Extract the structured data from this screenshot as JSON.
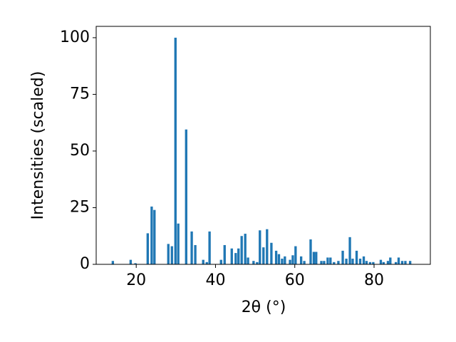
{
  "chart_data": {
    "type": "bar",
    "x_label": "2θ (°)",
    "y_label": "Intensities (scaled)",
    "x": [
      14.1,
      18.6,
      19.8,
      22.9,
      23.9,
      24.6,
      28.1,
      29.0,
      29.9,
      30.6,
      32.6,
      34.0,
      34.9,
      36.9,
      37.8,
      38.5,
      41.4,
      42.3,
      44.1,
      45.1,
      45.8,
      46.6,
      47.5,
      48.2,
      49.6,
      50.5,
      51.2,
      52.1,
      53.0,
      54.1,
      55.3,
      56.0,
      56.8,
      57.5,
      58.8,
      59.5,
      60.2,
      61.6,
      62.4,
      64.0,
      64.8,
      65.4,
      66.7,
      67.4,
      68.3,
      69.0,
      69.9,
      71.0,
      72.1,
      73.0,
      73.9,
      74.6,
      75.6,
      76.5,
      77.4,
      78.1,
      79.0,
      79.8,
      81.7,
      82.4,
      83.5,
      84.1,
      85.5,
      86.2,
      87.1,
      87.9,
      89.1
    ],
    "values": [
      1.5,
      2,
      0.5,
      13.7,
      25.5,
      24,
      9,
      8,
      100,
      18,
      59.5,
      14.5,
      8.5,
      2,
      1,
      14.5,
      2,
      8.5,
      7,
      5,
      7,
      12.5,
      13.5,
      3,
      1.5,
      1,
      15,
      7.5,
      15.5,
      9.5,
      6,
      4.5,
      2.5,
      3.5,
      2,
      4,
      8,
      3.5,
      1.5,
      11,
      5.5,
      5.5,
      1.5,
      1.5,
      3,
      3,
      1,
      1.5,
      6,
      2.5,
      12,
      2.5,
      6,
      2.5,
      3.5,
      1.5,
      1,
      1,
      2,
      1,
      1.5,
      3,
      1,
      3,
      1.5,
      1.5,
      1.5
    ],
    "color": "#1f77b4",
    "xlim": [
      9.9,
      94.2
    ],
    "ylim": [
      0,
      105
    ],
    "xticks": [
      20,
      40,
      60,
      80
    ],
    "yticks": [
      0,
      25,
      50,
      75,
      100
    ],
    "grid": false
  }
}
